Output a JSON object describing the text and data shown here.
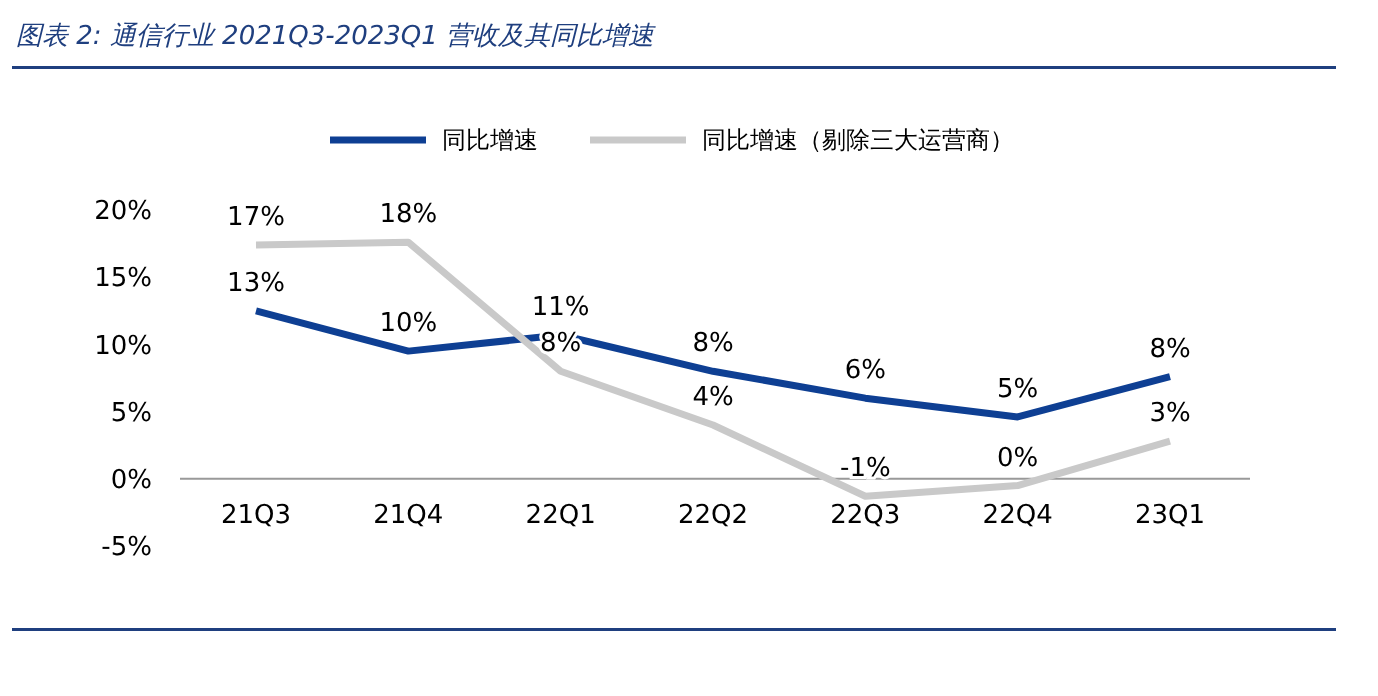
{
  "chart_data": {
    "type": "line",
    "title": "图表 2:  通信行业 2021Q3-2023Q1 营收及其同比增速",
    "categories": [
      "21Q3",
      "21Q4",
      "22Q1",
      "22Q2",
      "22Q3",
      "22Q4",
      "23Q1"
    ],
    "series": [
      {
        "name": "同比增速",
        "color": "#0e3f93",
        "values": [
          12.5,
          9.5,
          10.7,
          8,
          6,
          4.6,
          7.6
        ],
        "value_labels": [
          "13%",
          "10%",
          "11%",
          "8%",
          "6%",
          "5%",
          "8%"
        ]
      },
      {
        "name": "同比增速（剔除三大运营商）",
        "color": "#c9c9c9",
        "values": [
          17.4,
          17.6,
          8,
          4,
          -1.3,
          -0.5,
          2.8
        ],
        "value_labels": [
          "17%",
          "18%",
          "8%",
          "4%",
          "-1%",
          "0%",
          "3%"
        ]
      }
    ],
    "ylim": [
      -5,
      20
    ],
    "yticks": [
      {
        "value": -5,
        "label": "-5%"
      },
      {
        "value": 0,
        "label": "0%"
      },
      {
        "value": 5,
        "label": "5%"
      },
      {
        "value": 10,
        "label": "10%"
      },
      {
        "value": 15,
        "label": "15%"
      },
      {
        "value": 20,
        "label": "20%"
      }
    ],
    "legend": "top",
    "grid": false,
    "marker": "none",
    "line_style": "solid"
  }
}
